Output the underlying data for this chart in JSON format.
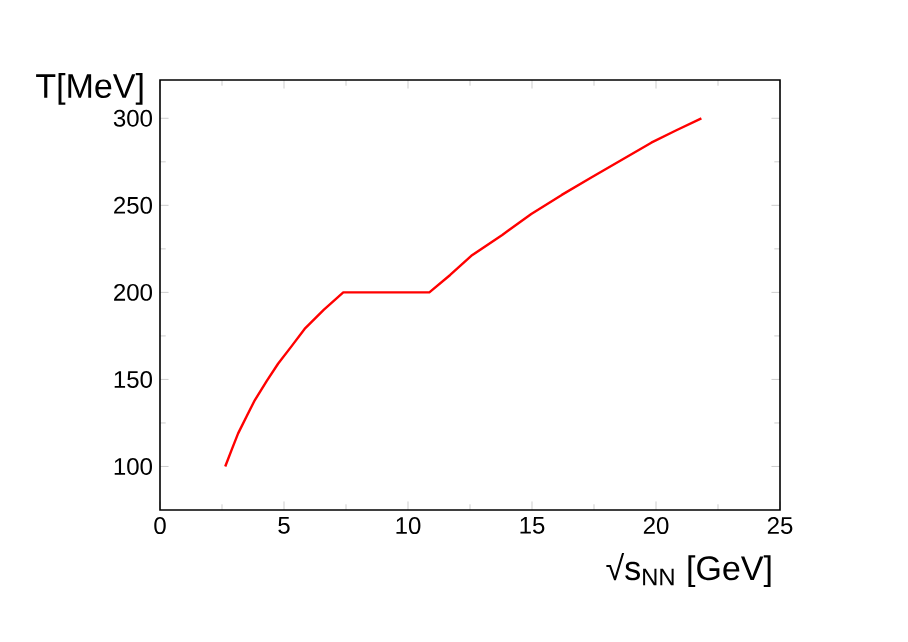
{
  "chart_data": {
    "type": "line",
    "xlabel": "√s$_{NN}$ [GeV]",
    "ylabel": "T[MeV]",
    "series": [
      {
        "color": "#ff0000",
        "x": [
          2.63,
          2.9,
          3.15,
          3.5,
          3.82,
          4.3,
          4.76,
          5.3,
          5.83,
          6.6,
          7.39,
          10.86,
          11.7,
          12.55,
          13.8,
          14.97,
          16.2,
          17.39,
          18.6,
          19.81,
          20.8,
          21.83
        ],
        "values": [
          100,
          110,
          119,
          129,
          138,
          149,
          159,
          169,
          179,
          190,
          200,
          200,
          210,
          221,
          233,
          245,
          256,
          266,
          276,
          286,
          293,
          300
        ]
      }
    ],
    "xlim": [
      0,
      25
    ],
    "ylim": [
      75,
      322
    ],
    "xticks": [
      0,
      5,
      10,
      15,
      20,
      25
    ],
    "yticks": [
      100,
      150,
      200,
      250,
      300
    ],
    "grid": false,
    "marker": "none",
    "line_style": "solid"
  }
}
